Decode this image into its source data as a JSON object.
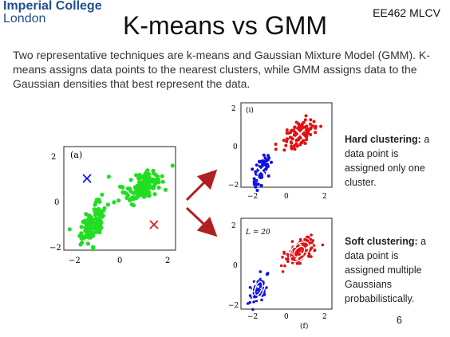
{
  "slide": {
    "logo_line1": "Imperial College",
    "logo_line2": "London",
    "course": "EE462 MLCV",
    "title": "K-means vs GMM",
    "intro": "Two representative techniques are k-means and Gaussian Mixture Model (GMM). K-means assigns data points to the nearest clusters, while GMM assigns data to the Gaussian densities that best represent the data.",
    "hard_title": "Hard clustering:",
    "hard_text": " a data point is assigned only one cluster.",
    "soft_title": "Soft clustering:",
    "soft_text": " a data point is assigned multiple Gaussians probabilistically.",
    "page_number": "6"
  },
  "figures": {
    "left": {
      "label": "(a)",
      "xticks": [
        "−2",
        "0",
        "2"
      ],
      "yticks": [
        "2",
        "0",
        "−2"
      ]
    },
    "top_right": {
      "label": "(i)",
      "xticks": [
        "−2",
        "0",
        "2"
      ],
      "yticks": [
        "2",
        "0",
        "−2"
      ]
    },
    "bottom_right": {
      "label": "(f)",
      "annotation": "L = 20",
      "xticks": [
        "−2",
        "0",
        "2"
      ],
      "yticks": [
        "2",
        "0",
        "−2"
      ]
    }
  },
  "colors": {
    "green": "#22dd22",
    "red": "#e01010",
    "blue": "#1010e0",
    "arrow": "#b02020"
  }
}
